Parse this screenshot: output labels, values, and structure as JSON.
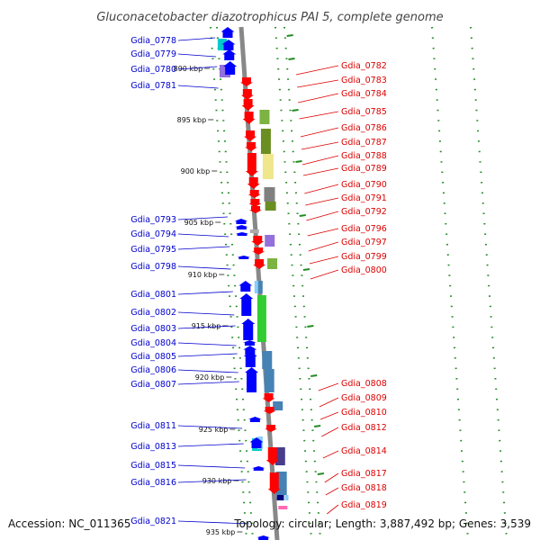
{
  "title": "Gluconacetobacter diazotrophicus PAI 5, complete genome",
  "footer": {
    "accession": "Accession: NC_011365",
    "summary": "Topology: circular; Length: 3,887,492 bp; Genes: 3,539"
  },
  "colors": {
    "forward": "#0000ff",
    "reverse": "#ff0000",
    "left_label": "#0000cc",
    "right_label": "#dd0000",
    "axis": "#888888",
    "dots": "#228b22"
  },
  "kbp_ticks": [
    "890 kbp",
    "895 kbp",
    "900 kbp",
    "905 kbp",
    "910 kbp",
    "915 kbp",
    "920 kbp",
    "925 kbp",
    "930 kbp",
    "935 kbp"
  ],
  "left_genes": [
    "Gdia_0778",
    "Gdia_0779",
    "Gdia_0780",
    "Gdia_0781",
    "Gdia_0793",
    "Gdia_0794",
    "Gdia_0795",
    "Gdia_0798",
    "Gdia_0801",
    "Gdia_0802",
    "Gdia_0803",
    "Gdia_0804",
    "Gdia_0805",
    "Gdia_0806",
    "Gdia_0807",
    "Gdia_0811",
    "Gdia_0813",
    "Gdia_0815",
    "Gdia_0816",
    "Gdia_0821"
  ],
  "right_genes": [
    "Gdia_0782",
    "Gdia_0783",
    "Gdia_0784",
    "Gdia_0785",
    "Gdia_0786",
    "Gdia_0787",
    "Gdia_0788",
    "Gdia_0789",
    "Gdia_0790",
    "Gdia_0791",
    "Gdia_0792",
    "Gdia_0796",
    "Gdia_0797",
    "Gdia_0799",
    "Gdia_0800",
    "Gdia_0808",
    "Gdia_0809",
    "Gdia_0810",
    "Gdia_0812",
    "Gdia_0814",
    "Gdia_0817",
    "Gdia_0818",
    "Gdia_0819"
  ],
  "cog_colors": [
    "#00cccc",
    "#9370db",
    "#7cb342",
    "#6b8e23",
    "#f0e68c",
    "#808080",
    "#32cd32",
    "#4682b4",
    "#483d8b",
    "#87cefa",
    "#ff69b4",
    "#000080"
  ]
}
